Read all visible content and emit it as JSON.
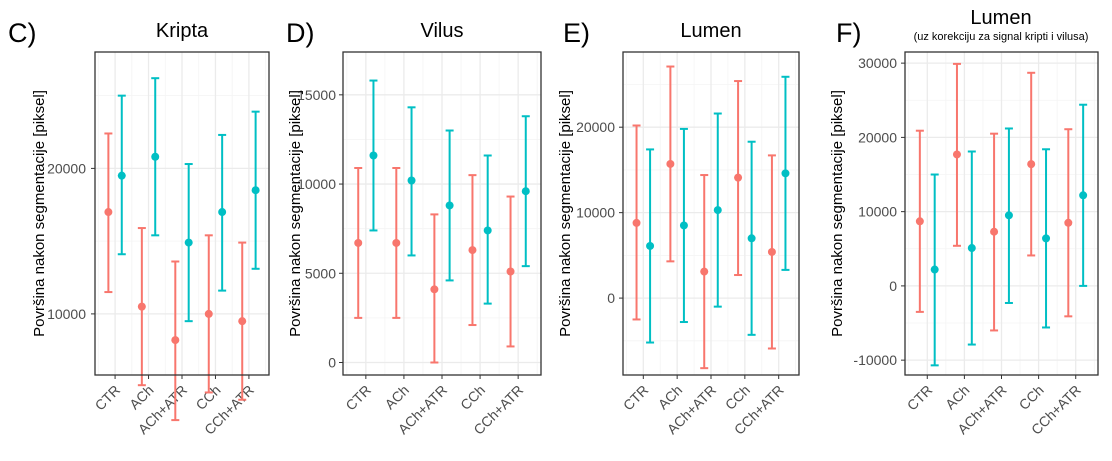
{
  "colors": {
    "series_a": "#F8766D",
    "series_b": "#00BFC4",
    "grid_major": "#ebebeb",
    "grid_minor": "#f4f4f4",
    "frame": "#333333"
  },
  "chart_data": [
    {
      "type": "errorbar",
      "letter": "C)",
      "title": "Kripta",
      "subtitle": "",
      "ylabel": "Površina nakon segmentacije [piksel]",
      "xlabel": "",
      "categories": [
        "CTR",
        "ACh",
        "ACh+ATR",
        "CCh",
        "CCh+ATR"
      ],
      "yticks": [
        10000,
        20000
      ],
      "ylim": [
        5800,
        28000
      ],
      "minor_ticks": [
        15000,
        25000
      ],
      "series": [
        {
          "mean": [
            17000,
            10500,
            8200,
            10000,
            9500
          ],
          "low": [
            11500,
            5100,
            2700,
            4600,
            4100
          ],
          "high": [
            22400,
            15900,
            13600,
            15400,
            14900
          ]
        },
        {
          "mean": [
            19500,
            20800,
            14900,
            17000,
            18500
          ],
          "low": [
            14100,
            15400,
            9500,
            11600,
            13100
          ],
          "high": [
            25000,
            26200,
            20300,
            22300,
            23900
          ]
        }
      ]
    },
    {
      "type": "errorbar",
      "letter": "D)",
      "title": "Vilus",
      "subtitle": "",
      "ylabel": "Površina nakon segmentacije [piksel]",
      "xlabel": "",
      "categories": [
        "CTR",
        "ACh",
        "ACh+ATR",
        "CCh",
        "CCh+ATR"
      ],
      "yticks": [
        0,
        5000,
        10000,
        15000
      ],
      "ylim": [
        -700,
        17400
      ],
      "minor_ticks": [
        2500,
        7500,
        12500
      ],
      "series": [
        {
          "mean": [
            6700,
            6700,
            4100,
            6300,
            5100
          ],
          "low": [
            2500,
            2500,
            0,
            2100,
            900
          ],
          "high": [
            10900,
            10900,
            8300,
            10500,
            9300
          ]
        },
        {
          "mean": [
            11600,
            10200,
            8800,
            7400,
            9600
          ],
          "low": [
            7400,
            6000,
            4600,
            3300,
            5400
          ],
          "high": [
            15800,
            14300,
            13000,
            11600,
            13800
          ]
        }
      ]
    },
    {
      "type": "errorbar",
      "letter": "E)",
      "title": "Lumen",
      "subtitle": "",
      "ylabel": "Površina nakon segmentacije [piksel]",
      "xlabel": "",
      "categories": [
        "CTR",
        "ACh",
        "ACh+ATR",
        "CCh",
        "CCh+ATR"
      ],
      "yticks": [
        0,
        10000,
        20000
      ],
      "ylim": [
        -9000,
        28800
      ],
      "minor_ticks": [
        -5000,
        5000,
        15000,
        25000
      ],
      "series": [
        {
          "mean": [
            8800,
            15700,
            3100,
            14100,
            5400
          ],
          "low": [
            -2500,
            4300,
            -8200,
            2700,
            -5900
          ],
          "high": [
            20200,
            27100,
            14400,
            25400,
            16700
          ]
        },
        {
          "mean": [
            6100,
            8500,
            10300,
            7000,
            14600
          ],
          "low": [
            -5200,
            -2800,
            -1000,
            -4300,
            3300
          ],
          "high": [
            17400,
            19800,
            21600,
            18300,
            25900
          ]
        }
      ]
    },
    {
      "type": "errorbar",
      "letter": "F)",
      "title": "Lumen",
      "subtitle": "(uz korekciju za signal kripti i vilusa)",
      "ylabel": "Površina nakon segmentacije [piksel]",
      "xlabel": "",
      "categories": [
        "CTR",
        "ACh",
        "ACh+ATR",
        "CCh",
        "CCh+ATR"
      ],
      "yticks": [
        -10000,
        0,
        10000,
        20000,
        30000
      ],
      "ylim": [
        -12000,
        31500
      ],
      "minor_ticks": [
        -5000,
        5000,
        15000,
        25000
      ],
      "series": [
        {
          "mean": [
            8700,
            17700,
            7300,
            16400,
            8500
          ],
          "low": [
            -3500,
            5400,
            -6000,
            4100,
            -4100
          ],
          "high": [
            20900,
            29900,
            20500,
            28700,
            21100
          ]
        },
        {
          "mean": [
            2200,
            5100,
            9500,
            6400,
            12200
          ],
          "low": [
            -10700,
            -7900,
            -2300,
            -5600,
            0
          ],
          "high": [
            15000,
            18100,
            21200,
            18400,
            24400
          ]
        }
      ]
    }
  ]
}
